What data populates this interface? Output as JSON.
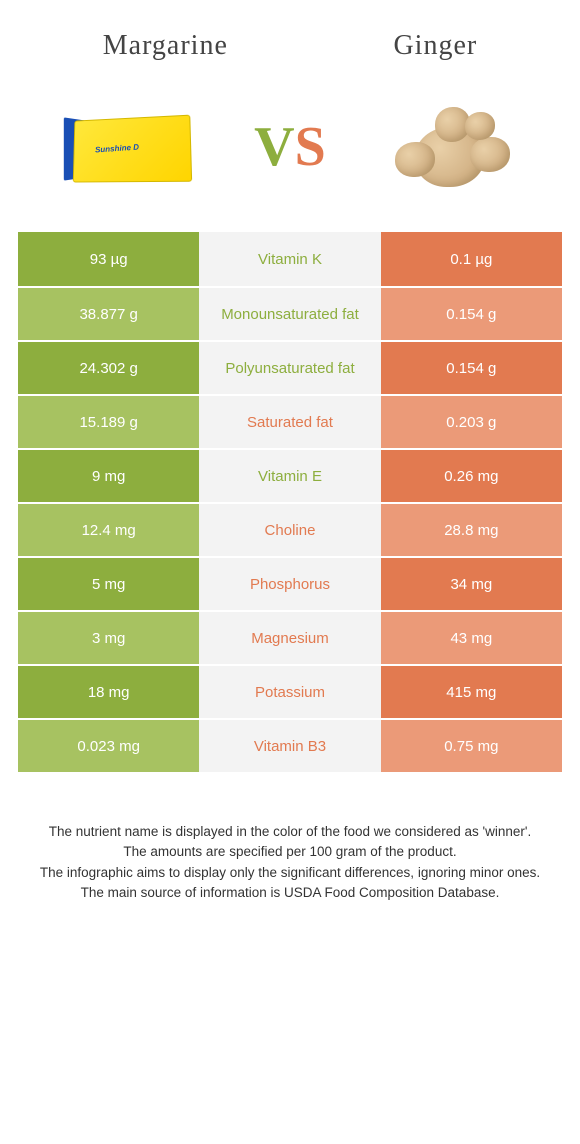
{
  "header": {
    "left": "Margarine",
    "right": "Ginger"
  },
  "vs": {
    "v": "V",
    "s": "S"
  },
  "colors": {
    "left_dark": "#8dae3e",
    "left_light": "#a7c261",
    "right_dark": "#e27a50",
    "right_light": "#eb9a78",
    "mid_bg": "#f3f3f3"
  },
  "rows": [
    {
      "left": "93 µg",
      "label": "Vitamin K",
      "right": "0.1 µg",
      "winner": "left"
    },
    {
      "left": "38.877 g",
      "label": "Monounsaturated fat",
      "right": "0.154 g",
      "winner": "left"
    },
    {
      "left": "24.302 g",
      "label": "Polyunsaturated fat",
      "right": "0.154 g",
      "winner": "left"
    },
    {
      "left": "15.189 g",
      "label": "Saturated fat",
      "right": "0.203 g",
      "winner": "right"
    },
    {
      "left": "9 mg",
      "label": "Vitamin E",
      "right": "0.26 mg",
      "winner": "left"
    },
    {
      "left": "12.4 mg",
      "label": "Choline",
      "right": "28.8 mg",
      "winner": "right"
    },
    {
      "left": "5 mg",
      "label": "Phosphorus",
      "right": "34 mg",
      "winner": "right"
    },
    {
      "left": "3 mg",
      "label": "Magnesium",
      "right": "43 mg",
      "winner": "right"
    },
    {
      "left": "18 mg",
      "label": "Potassium",
      "right": "415 mg",
      "winner": "right"
    },
    {
      "left": "0.023 mg",
      "label": "Vitamin B3",
      "right": "0.75 mg",
      "winner": "right"
    }
  ],
  "footer": {
    "l1": "The nutrient name is displayed in the color of the food we considered as 'winner'.",
    "l2": "The amounts are specified per 100 gram of the product.",
    "l3": "The infographic aims to display only the significant differences, ignoring minor ones.",
    "l4": "The main source of information is USDA Food Composition Database."
  }
}
